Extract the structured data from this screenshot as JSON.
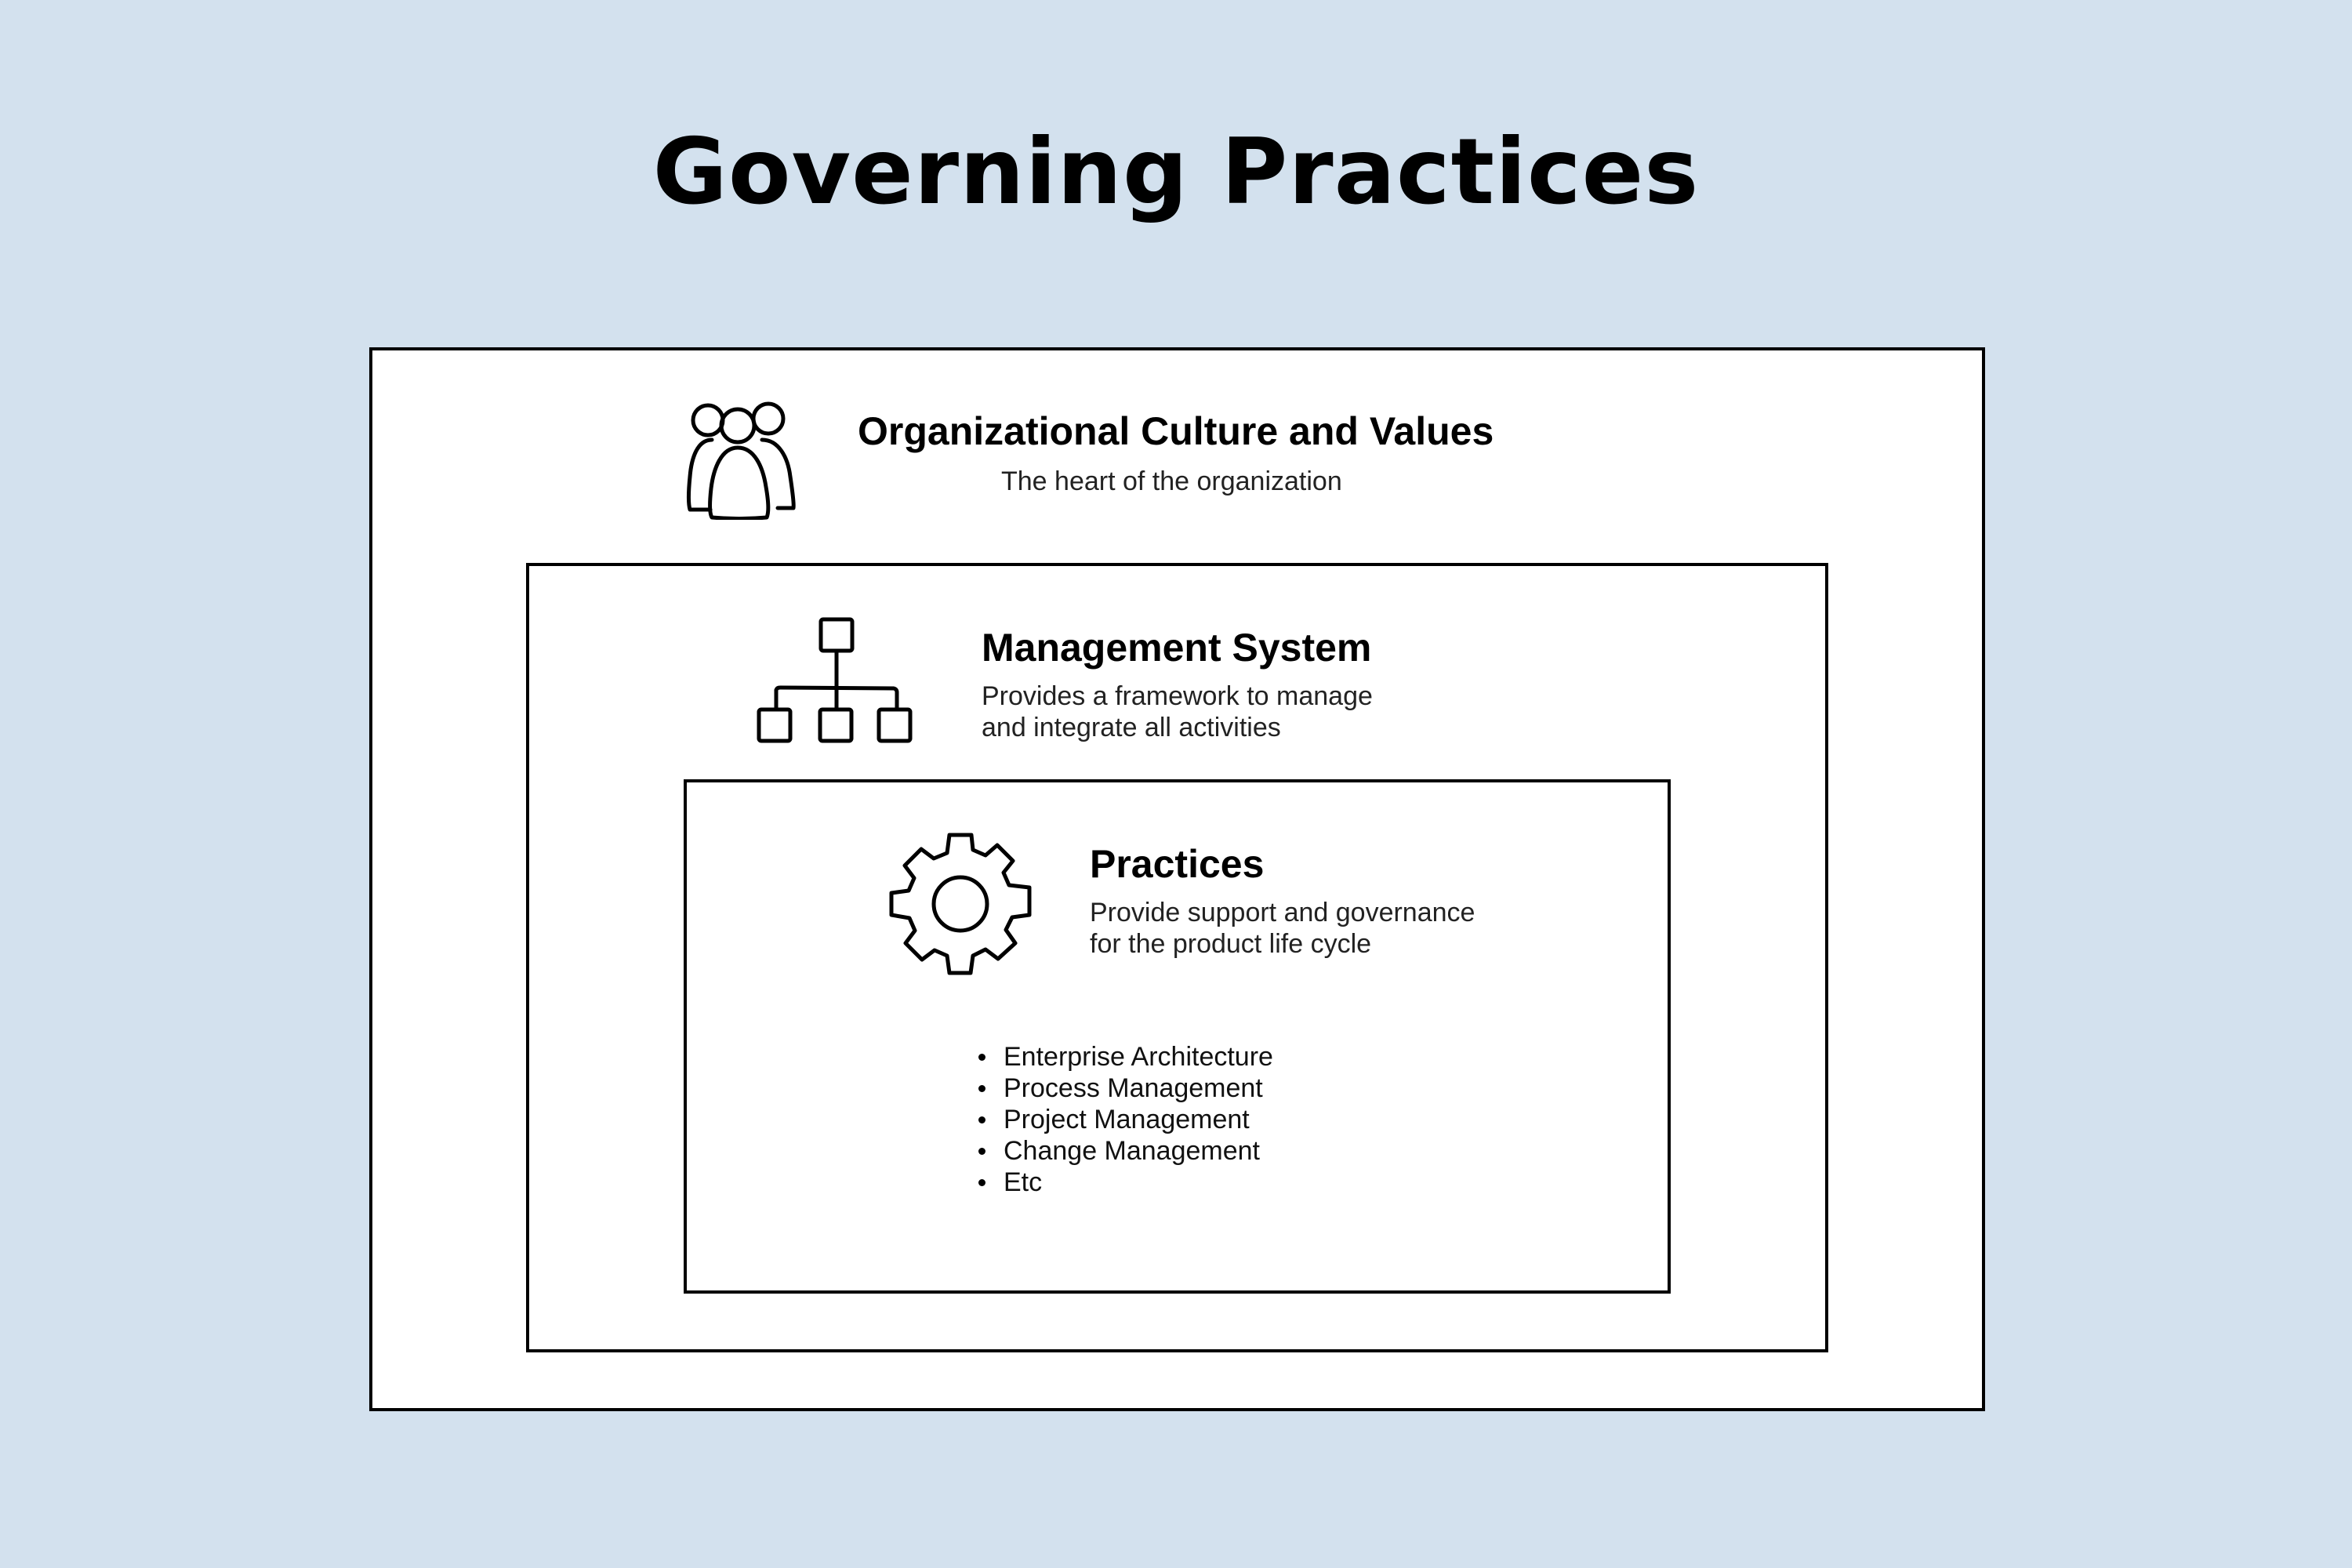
{
  "title": "Governing Practices",
  "layers": {
    "culture": {
      "heading": "Organizational Culture and Values",
      "description": [
        "The heart of the organization"
      ],
      "icon": "people-group-icon"
    },
    "management": {
      "heading": "Management System",
      "description": [
        "Provides a framework to manage",
        "and integrate all activities"
      ],
      "icon": "org-chart-icon"
    },
    "practices": {
      "heading": "Practices",
      "description": [
        "Provide support and governance",
        "for the product life cycle"
      ],
      "icon": "gear-icon",
      "items": [
        "Enterprise Architecture",
        "Process Management",
        "Project Management",
        "Change Management",
        "Etc"
      ]
    }
  },
  "colors": {
    "background": "#d3e1ee",
    "box_fill": "#ffffff",
    "stroke": "#000000"
  }
}
